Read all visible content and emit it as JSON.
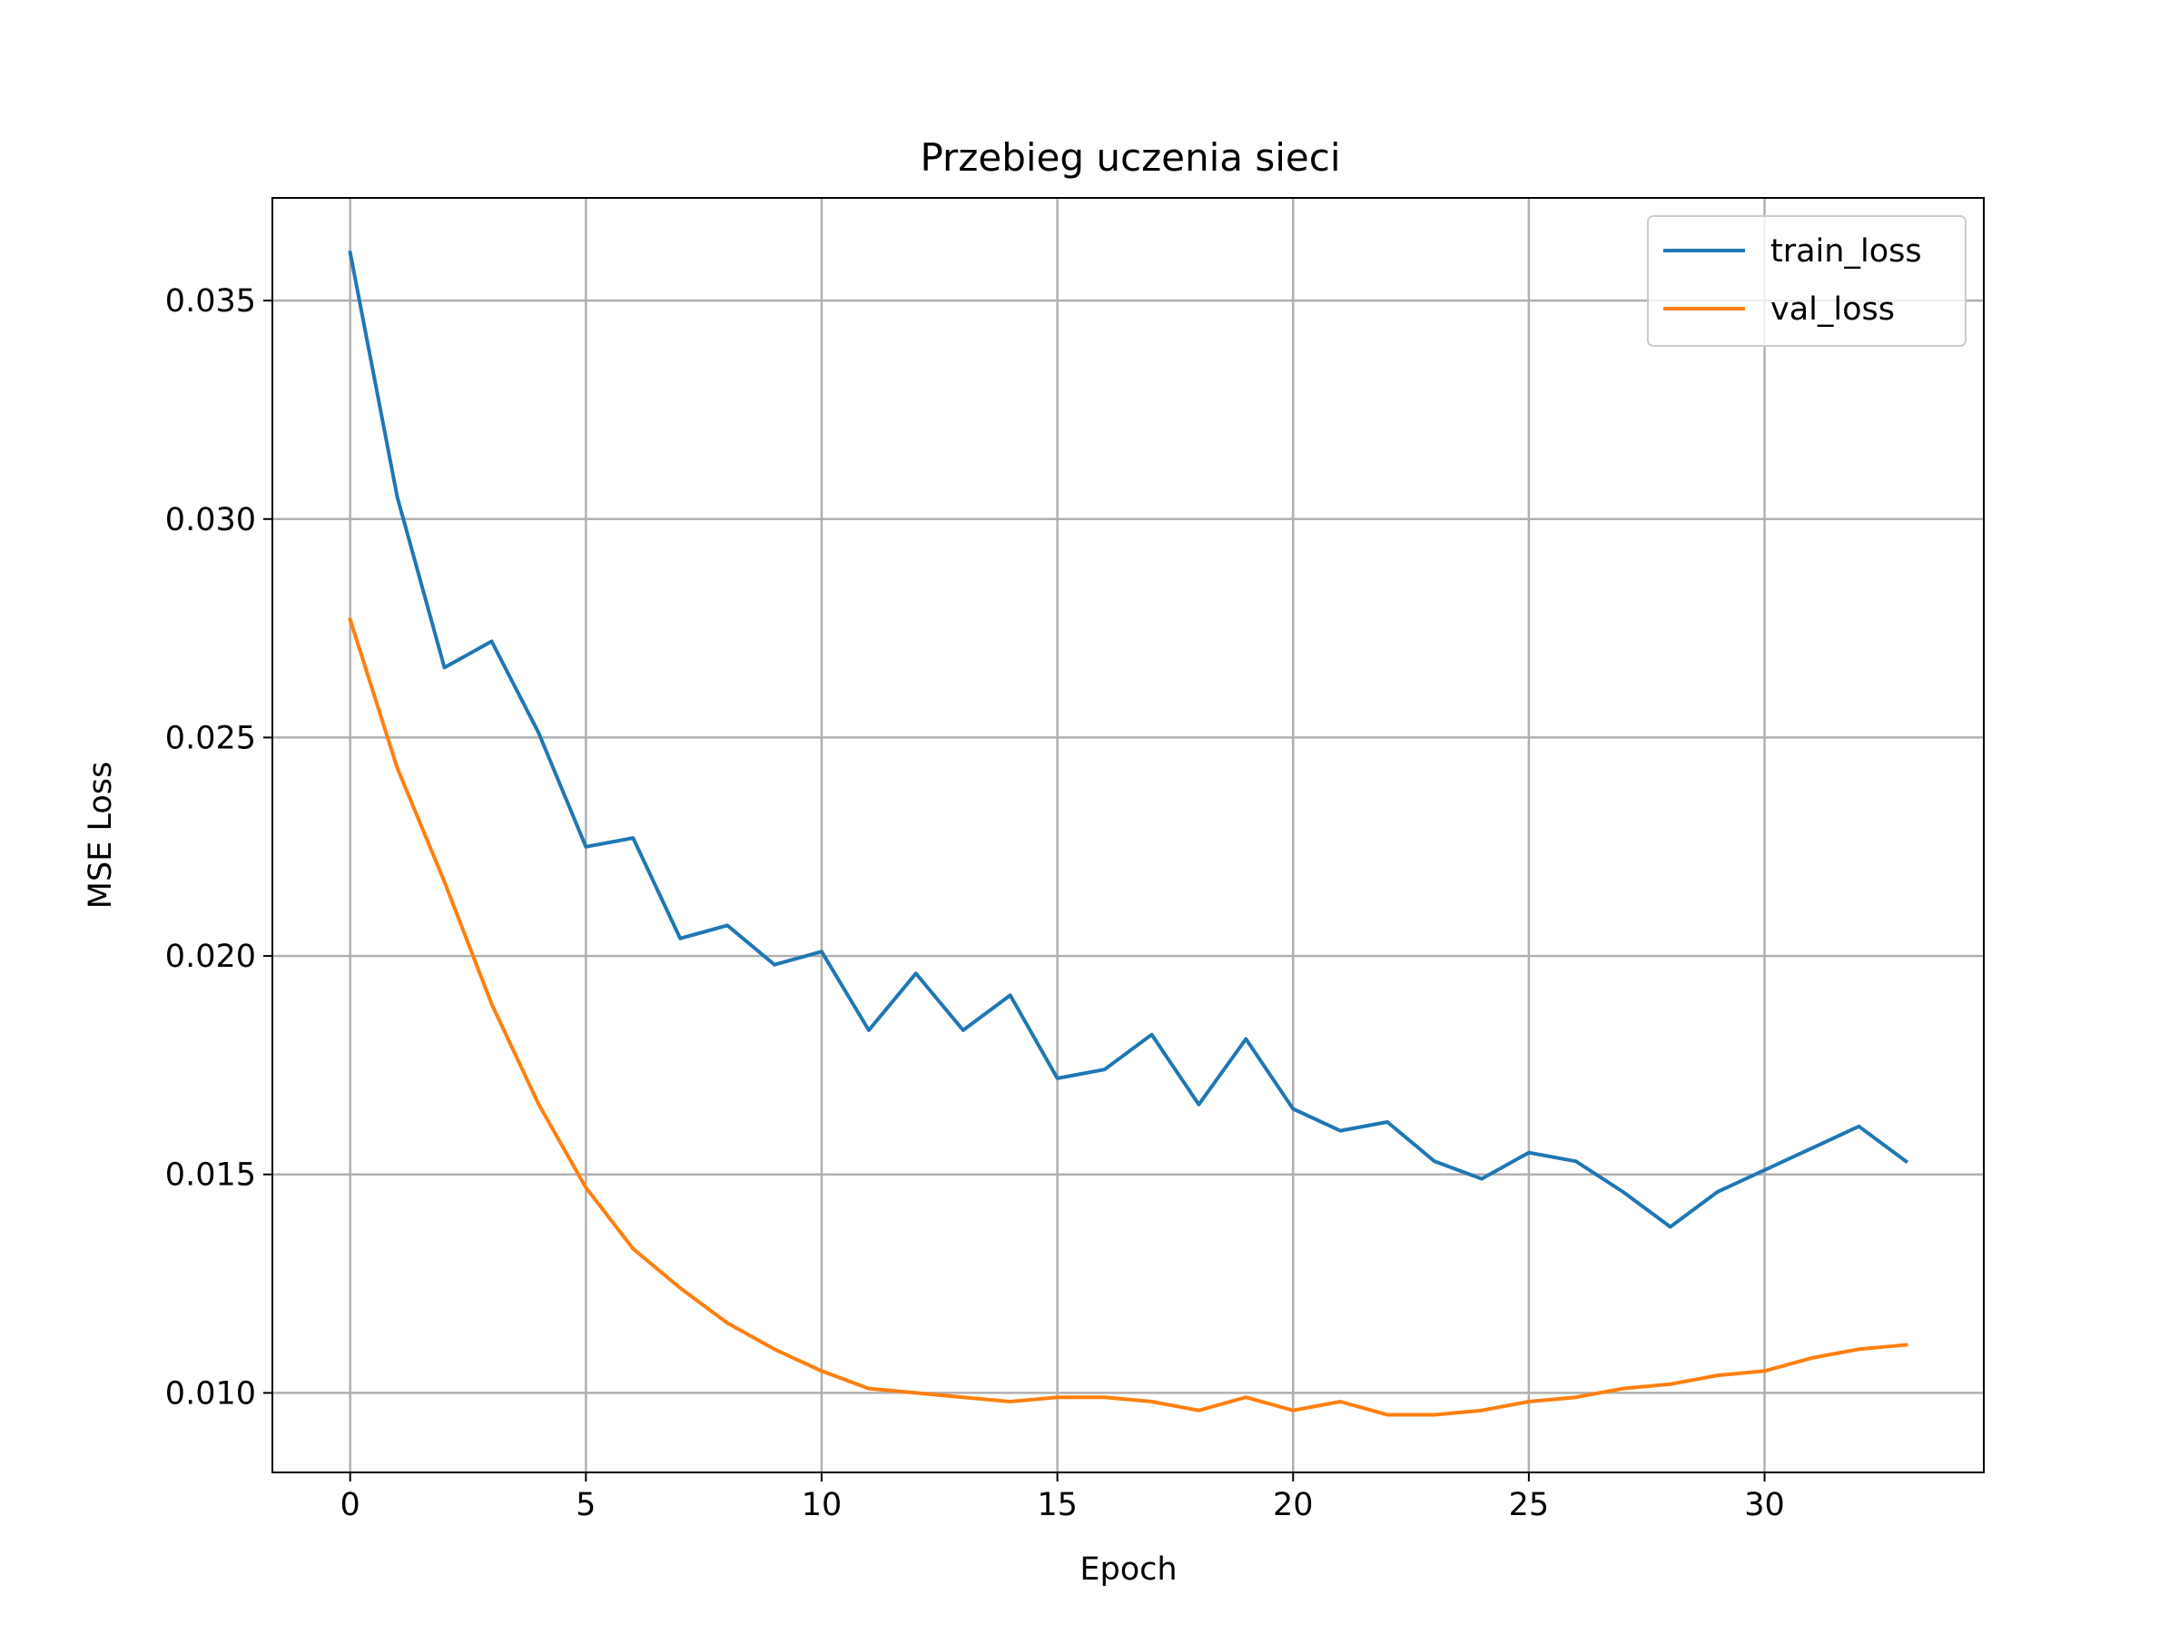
{
  "chart_data": {
    "type": "line",
    "title": "Przebieg uczenia sieci",
    "xlabel": "Epoch",
    "ylabel": "MSE Loss",
    "xlim": [
      -1.65,
      34.65
    ],
    "ylim": [
      0.00818,
      0.03735
    ],
    "xticks": [
      {
        "value": 0,
        "label": "0"
      },
      {
        "value": 5,
        "label": "5"
      },
      {
        "value": 10,
        "label": "10"
      },
      {
        "value": 15,
        "label": "15"
      },
      {
        "value": 20,
        "label": "20"
      },
      {
        "value": 25,
        "label": "25"
      },
      {
        "value": 30,
        "label": "30"
      }
    ],
    "yticks": [
      {
        "value": 0.01,
        "label": "0.010"
      },
      {
        "value": 0.015,
        "label": "0.015"
      },
      {
        "value": 0.02,
        "label": "0.020"
      },
      {
        "value": 0.025,
        "label": "0.025"
      },
      {
        "value": 0.03,
        "label": "0.030"
      },
      {
        "value": 0.035,
        "label": "0.035"
      }
    ],
    "grid": true,
    "legend_position": "top-right",
    "x": [
      0,
      1,
      2,
      3,
      4,
      5,
      6,
      7,
      8,
      9,
      10,
      11,
      12,
      13,
      14,
      15,
      16,
      17,
      18,
      19,
      20,
      21,
      22,
      23,
      24,
      25,
      26,
      27,
      28,
      29,
      30,
      31,
      32,
      33
    ],
    "series": [
      {
        "name": "train_loss",
        "color": "#1f77b4",
        "values": [
          0.0361,
          0.0305,
          0.0266,
          0.0272,
          0.0251,
          0.0225,
          0.0227,
          0.0204,
          0.0207,
          0.0198,
          0.0201,
          0.0183,
          0.0196,
          0.0183,
          0.0191,
          0.0172,
          0.0174,
          0.0182,
          0.0166,
          0.0181,
          0.0165,
          0.016,
          0.0162,
          0.0153,
          0.0149,
          0.0155,
          0.0153,
          0.0146,
          0.0138,
          0.0146,
          0.0151,
          0.0156,
          0.0161,
          0.0153
        ]
      },
      {
        "name": "val_loss",
        "color": "#ff7f0e",
        "values": [
          0.0277,
          0.0243,
          0.0217,
          0.0189,
          0.0166,
          0.0147,
          0.0133,
          0.0124,
          0.0116,
          0.011,
          0.0105,
          0.0101,
          0.01,
          0.0099,
          0.0098,
          0.0099,
          0.0099,
          0.0098,
          0.0096,
          0.0099,
          0.0096,
          0.0098,
          0.0095,
          0.0095,
          0.0096,
          0.0098,
          0.0099,
          0.0101,
          0.0102,
          0.0104,
          0.0105,
          0.0108,
          0.011,
          0.0111
        ]
      }
    ]
  }
}
